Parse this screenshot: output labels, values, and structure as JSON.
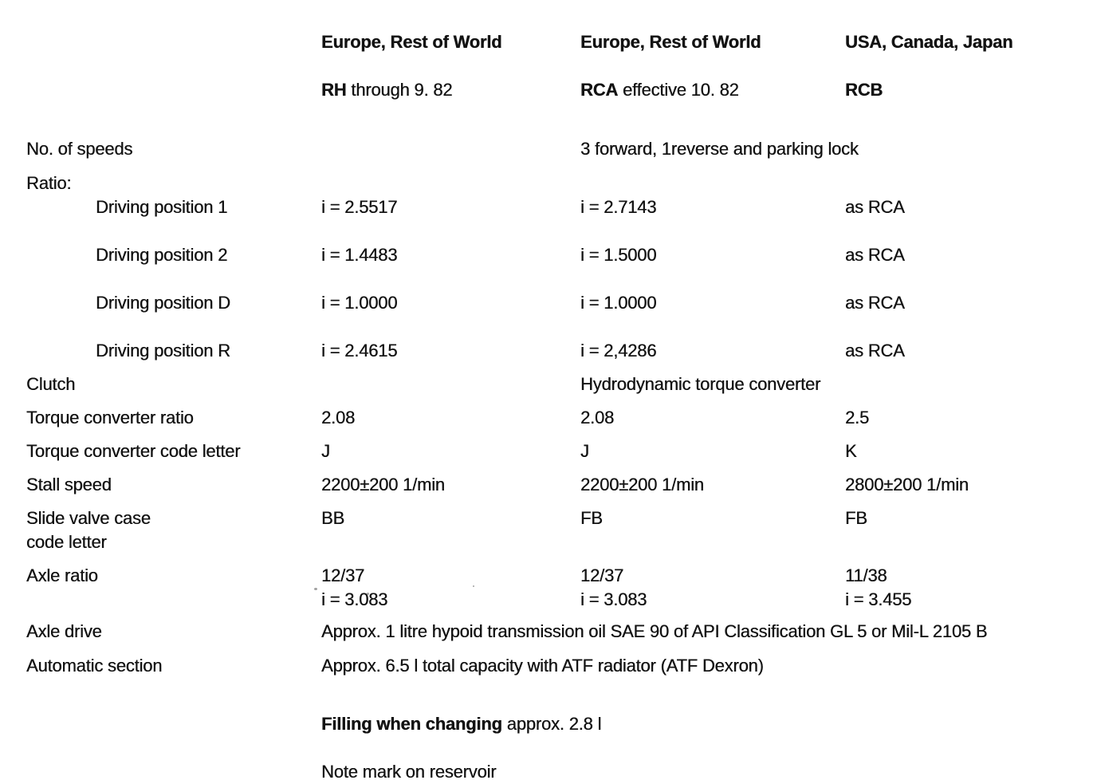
{
  "page": {
    "header": {
      "col1": {
        "title": "Europe, Rest of World",
        "code": "RH",
        "sub_rest": " through 9. 82"
      },
      "col2": {
        "title": "Europe, Rest of World",
        "code": "RCA",
        "sub_rest": " effective 10. 82"
      },
      "col3": {
        "title": "USA, Canada, Japan",
        "code": "RCB",
        "sub_rest": ""
      }
    },
    "rows": {
      "speeds": {
        "label": "No. of speeds",
        "value": "3 forward, 1reverse and parking lock"
      },
      "ratio": {
        "label": "Ratio:",
        "positions": [
          "Driving position 1",
          "Driving position 2",
          "Driving position D",
          "Driving position R"
        ],
        "rh": [
          "i = 2.5517",
          "i = 1.4483",
          "i = 1.0000",
          "i = 2.4615"
        ],
        "rca": [
          "i = 2.7143",
          "i = 1.5000",
          "i = 1.0000",
          "i = 2,4286"
        ],
        "rcb": [
          "as RCA",
          "as RCA",
          "as RCA",
          "as RCA"
        ]
      },
      "clutch": {
        "label": "Clutch",
        "value": "Hydrodynamic torque converter"
      },
      "torque_ratio": {
        "label": "Torque converter ratio",
        "rh": "2.08",
        "rca": "2.08",
        "rcb": "2.5"
      },
      "torque_code": {
        "label": "Torque converter code letter",
        "rh": "J",
        "rca": "J",
        "rcb": "K"
      },
      "stall": {
        "label": "Stall speed",
        "rh": "2200±200 1/min",
        "rca": "2200±200 1/min",
        "rcb": "2800±200 1/min"
      },
      "slide_valve": {
        "label": "Slide valve case\ncode letter",
        "rh": "BB",
        "rca": "FB",
        "rcb": "FB"
      },
      "axle_ratio": {
        "label": "Axle ratio",
        "rh": "12/37\ni = 3.083",
        "rca": "12/37\ni = 3.083",
        "rcb": "11/38\ni = 3.455"
      },
      "axle_drive": {
        "label": "Axle drive",
        "value": "Approx. 1 litre hypoid transmission oil SAE 90 of API Classification GL 5 or Mil-L 2105 B"
      },
      "automatic": {
        "label": "Automatic section",
        "value": "Approx. 6.5 l total capacity with ATF radiator (ATF Dexron)"
      },
      "filling": {
        "bold": "Filling when changing",
        "rest": " approx. 2.8 l",
        "note": "Note mark on reservoir"
      }
    }
  }
}
